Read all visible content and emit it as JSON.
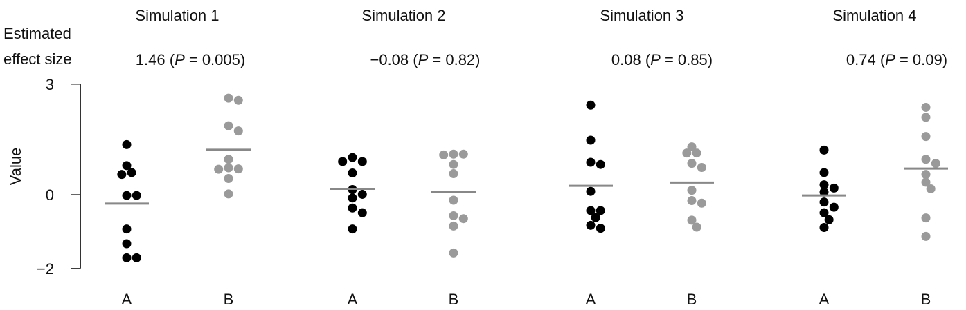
{
  "chart_data": {
    "type": "scatter",
    "ylabel": "Value",
    "effect_label_line1": "Estimated",
    "effect_label_line2": "effect size",
    "ylim": [
      -2,
      3
    ],
    "yticks": [
      "3",
      "0",
      "−2"
    ],
    "ytick_values": [
      3,
      0,
      -2
    ],
    "colors": {
      "A": "#000000",
      "B": "#9a9a9a",
      "mean": "#888888",
      "axis": "#333333"
    },
    "panels": [
      {
        "title": "Simulation 1",
        "effect": "1.46",
        "p": "0.005",
        "groups": [
          {
            "label": "A",
            "mean": -0.24,
            "values": [
              1.36,
              0.79,
              0.6,
              0.55,
              -0.02,
              -0.02,
              -0.93,
              -1.33,
              -1.71,
              -1.71
            ]
          },
          {
            "label": "B",
            "mean": 1.22,
            "values": [
              2.62,
              2.56,
              1.87,
              1.73,
              0.96,
              0.73,
              0.7,
              0.69,
              0.44,
              0.02
            ]
          }
        ]
      },
      {
        "title": "Simulation 2",
        "effect": "−0.08",
        "p": "0.82",
        "groups": [
          {
            "label": "A",
            "mean": 0.16,
            "values": [
              1.01,
              0.9,
              0.9,
              0.59,
              0.14,
              0.01,
              -0.09,
              -0.36,
              -0.49,
              -0.93
            ]
          },
          {
            "label": "B",
            "mean": 0.08,
            "values": [
              1.1,
              1.08,
              1.1,
              0.82,
              0.57,
              -0.15,
              -0.57,
              -0.65,
              -0.85,
              -1.58
            ]
          }
        ]
      },
      {
        "title": "Simulation 3",
        "effect": "0.08",
        "p": "0.85",
        "groups": [
          {
            "label": "A",
            "mean": 0.24,
            "values": [
              2.43,
              1.48,
              0.88,
              0.82,
              0.09,
              -0.43,
              -0.43,
              -0.62,
              -0.83,
              -0.91
            ]
          },
          {
            "label": "B",
            "mean": 0.33,
            "values": [
              1.3,
              1.13,
              1.13,
              0.85,
              0.74,
              0.12,
              -0.16,
              -0.23,
              -0.69,
              -0.88
            ]
          }
        ]
      },
      {
        "title": "Simulation 4",
        "effect": "0.74",
        "p": "0.09",
        "groups": [
          {
            "label": "A",
            "mean": -0.02,
            "values": [
              1.21,
              0.6,
              0.27,
              0.18,
              0.07,
              -0.2,
              -0.34,
              -0.49,
              -0.68,
              -0.89
            ]
          },
          {
            "label": "B",
            "mean": 0.71,
            "values": [
              2.37,
              2.1,
              1.58,
              0.96,
              0.85,
              0.55,
              0.34,
              0.16,
              -0.63,
              -1.13
            ]
          }
        ]
      }
    ]
  }
}
